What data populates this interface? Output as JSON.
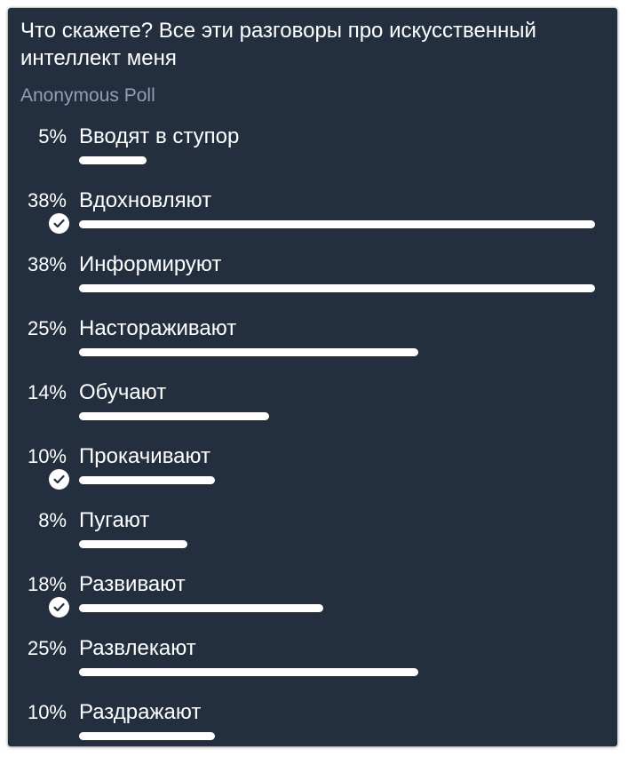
{
  "poll": {
    "question": "Что скажете? Все эти разговоры про искусственный интеллект меня",
    "type_label": "Anonymous Poll",
    "options": [
      {
        "percent": "5%",
        "label": "Вводят в ступор",
        "value": 5,
        "chosen": false
      },
      {
        "percent": "38%",
        "label": "Вдохновляют",
        "value": 38,
        "chosen": true
      },
      {
        "percent": "38%",
        "label": "Информируют",
        "value": 38,
        "chosen": false
      },
      {
        "percent": "25%",
        "label": "Настораживают",
        "value": 25,
        "chosen": false
      },
      {
        "percent": "14%",
        "label": "Обучают",
        "value": 14,
        "chosen": false
      },
      {
        "percent": "10%",
        "label": "Прокачивают",
        "value": 10,
        "chosen": true
      },
      {
        "percent": "8%",
        "label": "Пугают",
        "value": 8,
        "chosen": false
      },
      {
        "percent": "18%",
        "label": "Развивают",
        "value": 18,
        "chosen": true
      },
      {
        "percent": "25%",
        "label": "Развлекают",
        "value": 25,
        "chosen": false
      },
      {
        "percent": "10%",
        "label": "Раздражают",
        "value": 10,
        "chosen": false
      }
    ]
  },
  "icons": {
    "chosen": "check-circle-icon"
  },
  "colors": {
    "background": "#232f3f",
    "text": "#ffffff",
    "secondary_text": "#8f9fb5",
    "bar": "#ffffff"
  }
}
